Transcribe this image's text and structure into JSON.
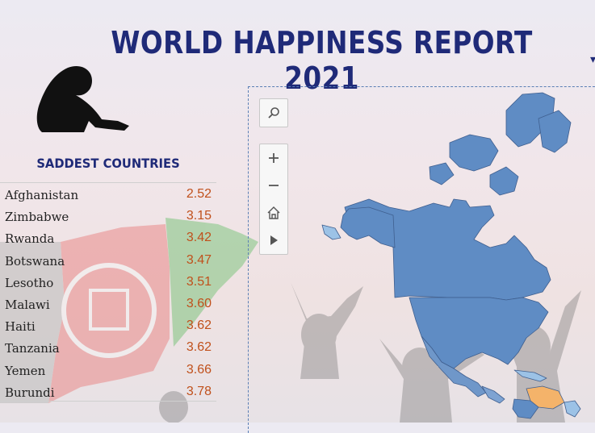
{
  "report": {
    "title": "WORLD HAPPINESS REPORT 2021"
  },
  "saddest": {
    "heading": "SADDEST COUNTRIES",
    "rows": [
      {
        "country": "Afghanistan",
        "score": "2.52"
      },
      {
        "country": "Zimbabwe",
        "score": "3.15"
      },
      {
        "country": "Rwanda",
        "score": "3.42"
      },
      {
        "country": "Botswana",
        "score": "3.47"
      },
      {
        "country": "Lesotho",
        "score": "3.51"
      },
      {
        "country": "Malawi",
        "score": "3.60"
      },
      {
        "country": "Haiti",
        "score": "3.62"
      },
      {
        "country": "Tanzania",
        "score": "3.62"
      },
      {
        "country": "Yemen",
        "score": "3.66"
      },
      {
        "country": "Burundi",
        "score": "3.78"
      }
    ]
  },
  "map_controls": {
    "search_icon": "search-icon",
    "zoom_in_icon": "plus-icon",
    "zoom_out_icon": "minus-icon",
    "home_icon": "home-icon",
    "play_icon": "play-icon"
  },
  "colors": {
    "title": "#1f2a78",
    "score": "#c0501b",
    "map_blue": "#5f8cc4",
    "map_light_blue": "#9cc2e6",
    "map_orange": "#f4b36a"
  }
}
